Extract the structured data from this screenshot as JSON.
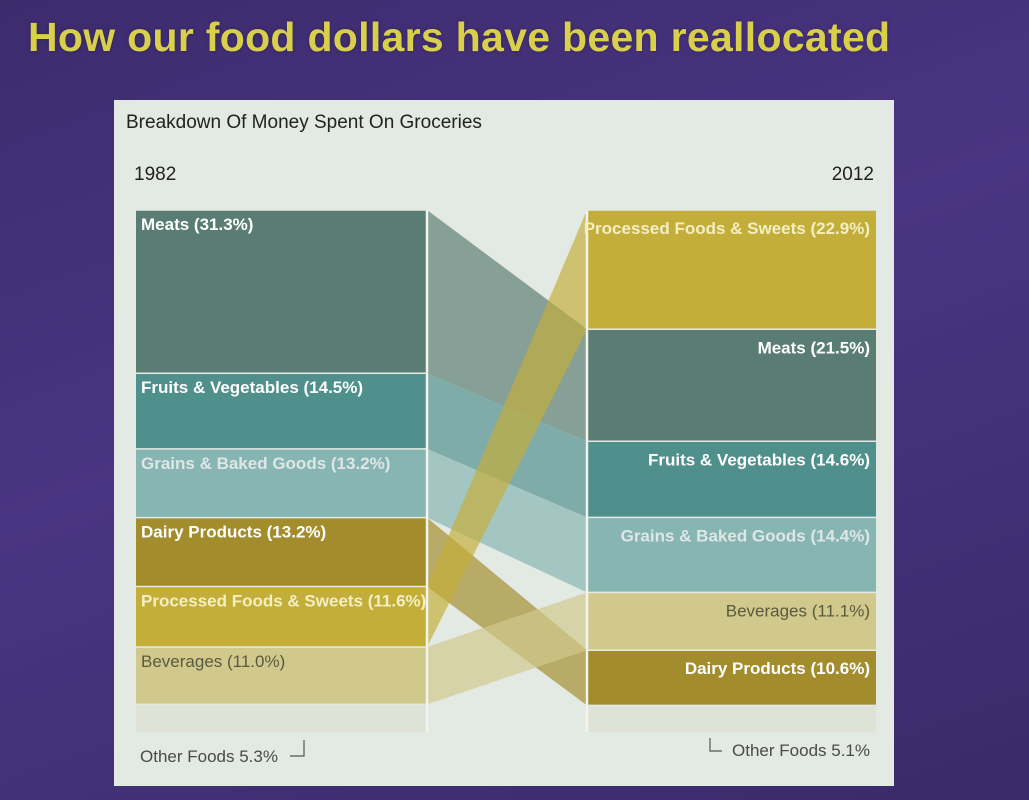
{
  "slide": {
    "title": "How our food dollars have been reallocated"
  },
  "chart_data": {
    "type": "alluvial",
    "title": "Breakdown Of Money Spent On Groceries",
    "left_year": "1982",
    "right_year": "2012",
    "categories": [
      {
        "name": "Meats",
        "color": "#5a7d73",
        "left": 31.3,
        "right": 21.5,
        "left_label": "Meats (31.3%)",
        "right_label": "Meats (21.5%)"
      },
      {
        "name": "Fruits & Vegetables",
        "color": "#4f8f8c",
        "left": 14.5,
        "right": 14.6,
        "left_label": "Fruits & Vegetables (14.5%)",
        "right_label": "Fruits & Vegetables (14.6%)"
      },
      {
        "name": "Grains & Baked Goods",
        "color": "#86b5b2",
        "left": 13.2,
        "right": 14.4,
        "left_label": "Grains & Baked Goods (13.2%)",
        "right_label": "Grains & Baked Goods (14.4%)"
      },
      {
        "name": "Dairy Products",
        "color": "#a38c2c",
        "left": 13.2,
        "right": 10.6,
        "left_label": "Dairy Products (13.2%)",
        "right_label": "Dairy Products (10.6%)"
      },
      {
        "name": "Processed Foods & Sweets",
        "color": "#c4ae3a",
        "left": 11.6,
        "right": 22.9,
        "left_label": "Processed Foods & Sweets (11.6%)",
        "right_label": "Processed Foods & Sweets (22.9%)"
      },
      {
        "name": "Beverages",
        "color": "#d1c88c",
        "left": 11.0,
        "right": 11.1,
        "left_label": "Beverages (11.0%)",
        "right_label": "Beverages (11.1%)"
      },
      {
        "name": "Other Foods",
        "color": "#dfe2d6",
        "left": 5.3,
        "right": 5.1,
        "left_label": "Other Foods 5.3%",
        "right_label": "Other Foods 5.1%"
      }
    ],
    "left_order": [
      "Meats",
      "Fruits & Vegetables",
      "Grains & Baked Goods",
      "Dairy Products",
      "Processed Foods & Sweets",
      "Beverages",
      "Other Foods"
    ],
    "right_order": [
      "Processed Foods & Sweets",
      "Meats",
      "Fruits & Vegetables",
      "Grains & Baked Goods",
      "Beverages",
      "Dairy Products",
      "Other Foods"
    ]
  }
}
